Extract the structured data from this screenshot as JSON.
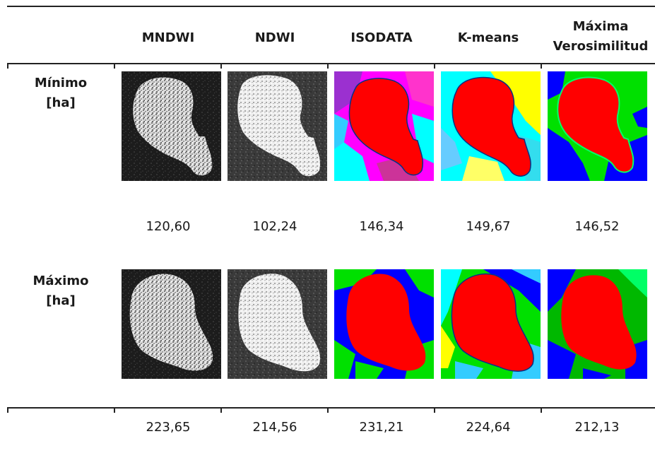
{
  "table": {
    "columns": [
      "MNDWI",
      "NDWI",
      "ISODATA",
      "K-means",
      "Máxima Verosimilitud"
    ],
    "rows": [
      {
        "label_line1": "Mínimo",
        "label_line2": "[ha]",
        "values": [
          "120,60",
          "102,24",
          "146,34",
          "149,67",
          "146,52"
        ]
      },
      {
        "label_line1": "Máximo",
        "label_line2": "[ha]",
        "values": [
          "223,65",
          "214,56",
          "231,21",
          "224,64",
          "212,13"
        ]
      }
    ]
  },
  "classification_colors": {
    "water": "#ff0000",
    "magenta": "#ff00ff",
    "cyan": "#00ffff",
    "blue": "#0000ff",
    "green": "#00e000",
    "yellow": "#ffff00",
    "purple": "#9b30d0"
  },
  "cell_images": {
    "min": [
      "grayscale-mndwi",
      "grayscale-ndwi",
      "classified-isodata",
      "classified-kmeans",
      "classified-max-likelihood"
    ],
    "max": [
      "grayscale-mndwi",
      "grayscale-ndwi",
      "classified-isodata",
      "classified-kmeans",
      "classified-max-likelihood"
    ]
  }
}
